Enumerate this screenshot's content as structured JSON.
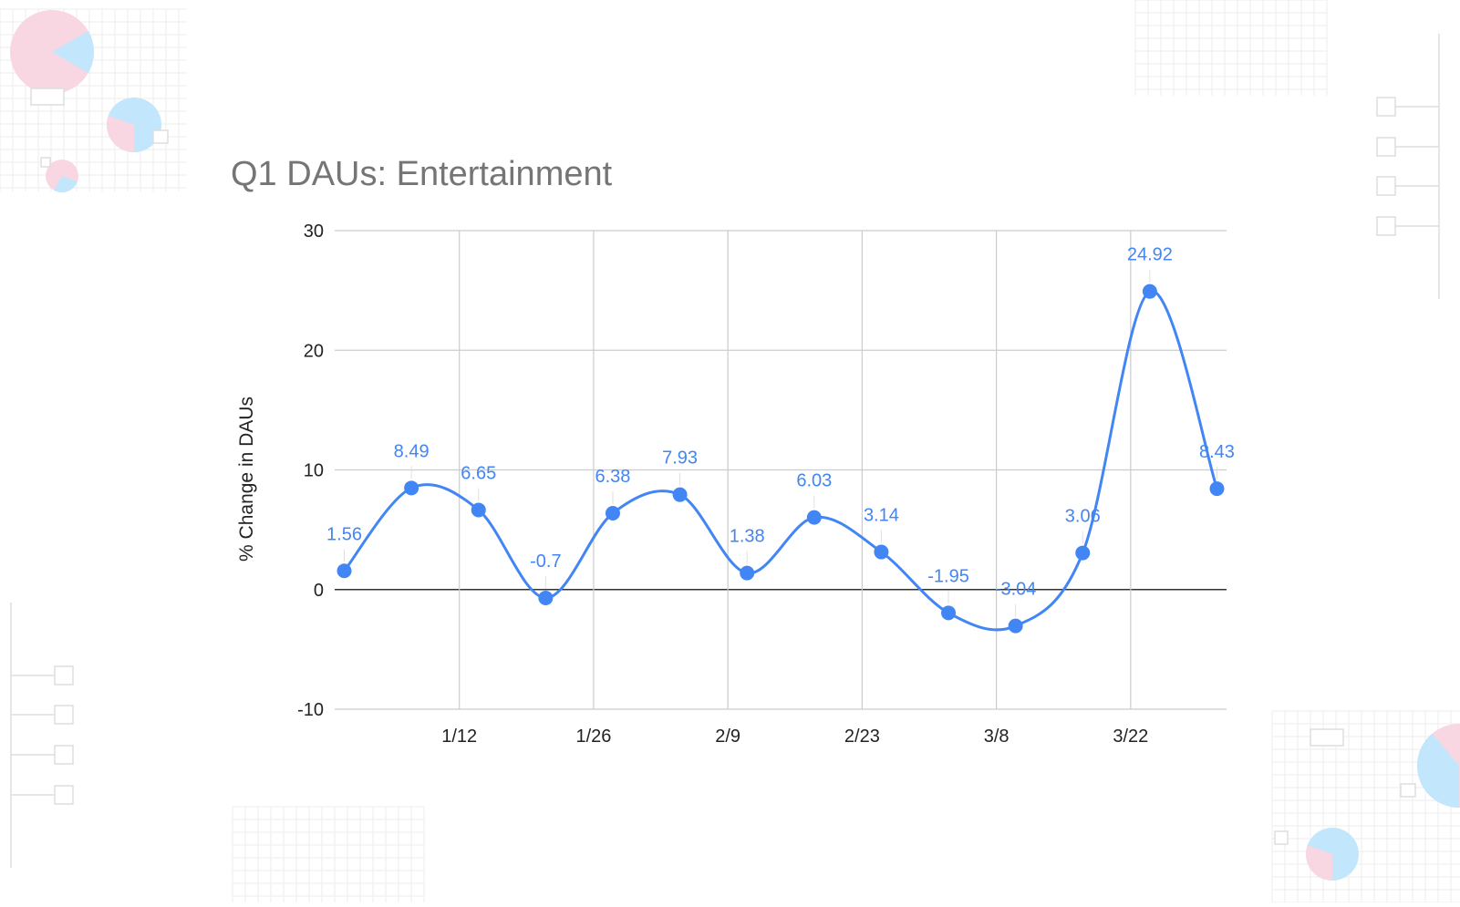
{
  "chart_data": {
    "type": "line",
    "title": "Q1 DAUs: Entertainment",
    "xlabel": "",
    "ylabel": "% Change in DAUs",
    "ylim": [
      -10,
      30
    ],
    "y_ticks": [
      -10,
      0,
      10,
      20,
      30
    ],
    "x_ticks": [
      "1/12",
      "1/26",
      "2/9",
      "2/23",
      "3/8",
      "3/22"
    ],
    "x_tick_dates": [
      "2020-01-12",
      "2020-01-26",
      "2020-02-09",
      "2020-02-23",
      "2020-03-08",
      "2020-03-22"
    ],
    "x_range": [
      "2019-12-30",
      "2020-04-01"
    ],
    "smooth": true,
    "grid": true,
    "legend": "none",
    "series": [
      {
        "name": "",
        "color": "#4285f4",
        "points": [
          {
            "date": "2019-12-31",
            "value": 1.56,
            "label": "1.56"
          },
          {
            "date": "2020-01-07",
            "value": 8.49,
            "label": "8.49"
          },
          {
            "date": "2020-01-14",
            "value": 6.65,
            "label": "6.65"
          },
          {
            "date": "2020-01-21",
            "value": -0.7,
            "label": "-0.7"
          },
          {
            "date": "2020-01-28",
            "value": 6.38,
            "label": "6.38"
          },
          {
            "date": "2020-02-04",
            "value": 7.93,
            "label": "7.93"
          },
          {
            "date": "2020-02-11",
            "value": 1.38,
            "label": "1.38"
          },
          {
            "date": "2020-02-18",
            "value": 6.03,
            "label": "6.03"
          },
          {
            "date": "2020-02-25",
            "value": 3.14,
            "label": "3.14"
          },
          {
            "date": "2020-03-03",
            "value": -1.95,
            "label": "-1.95"
          },
          {
            "date": "2020-03-10",
            "value": -3.04,
            "label": "-3.04"
          },
          {
            "date": "2020-03-17",
            "value": 3.06,
            "label": "3.06"
          },
          {
            "date": "2020-03-24",
            "value": 24.92,
            "label": "24.92"
          },
          {
            "date": "2020-03-31",
            "value": 8.43,
            "label": "8.43"
          }
        ]
      }
    ]
  },
  "decor_colors": {
    "pink": "#f8d7e3",
    "blue": "#c2e6fb",
    "grid": "#eeeeee",
    "box": "#dddddd"
  }
}
